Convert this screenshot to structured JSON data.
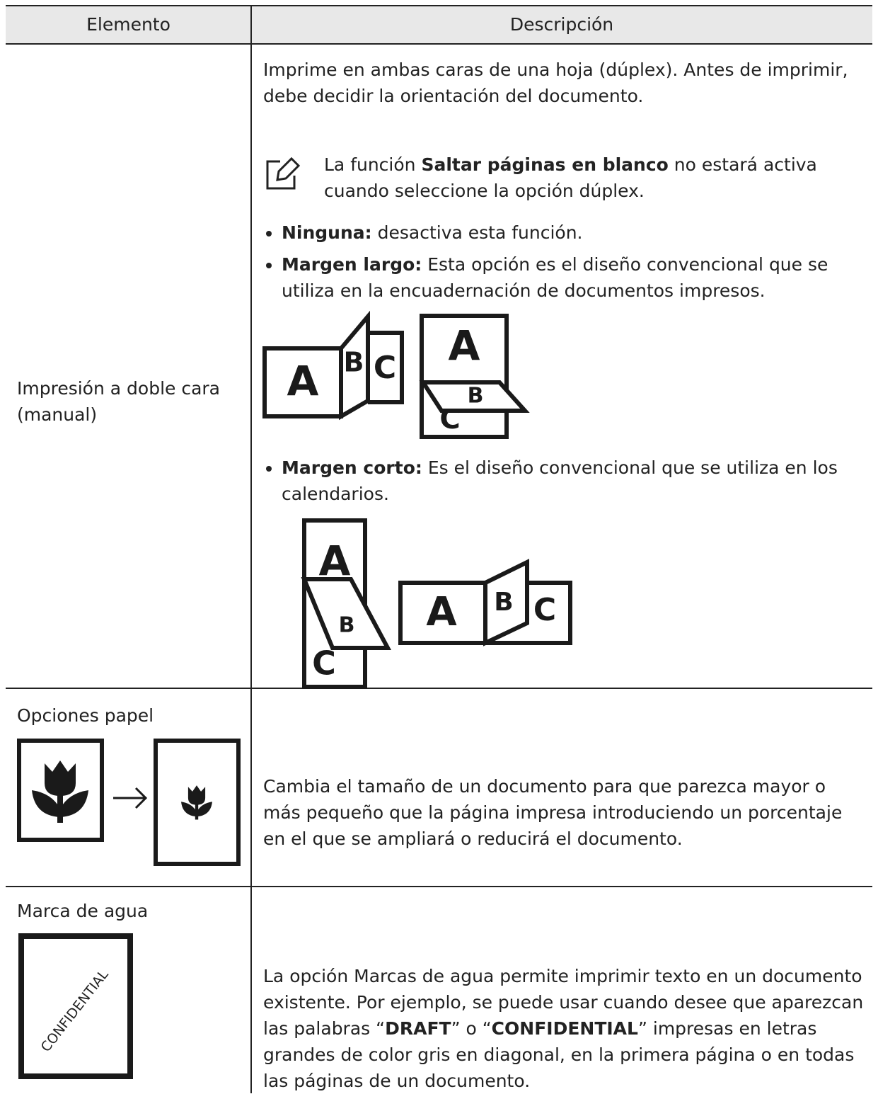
{
  "table": {
    "header": [
      "Elemento",
      "Descripción"
    ],
    "rows": [
      {
        "element": "Impresión a doble cara (manual)",
        "description": {
          "intro": "Imprime en ambas caras de una hoja (dúplex). Antes de imprimir, debe decidir la orientación del documento.",
          "note": [
            "La función ",
            "Saltar páginas en blanco",
            " no estará activa cuando seleccione la opción dúplex."
          ],
          "options": [
            {
              "label": "Ninguna:",
              "text": " desactiva esta función."
            },
            {
              "label": "Margen largo:",
              "text": " Esta opción es el diseño convencional que se utiliza en la encuadernación de documentos impresos."
            },
            {
              "label": "Margen corto:",
              "text": " Es el diseño convencional que se utiliza en los calendarios."
            }
          ]
        }
      },
      {
        "element": "Opciones papel",
        "description": "Cambia el tamaño de un documento para que parezca mayor o más pequeño que la página impresa introduciendo un porcentaje en el que se ampliará o reducirá el documento."
      },
      {
        "element": "Marca de agua",
        "description": [
          "La opción Marcas de agua permite imprimir texto en un documento existente. Por ejemplo, se puede usar cuando desee que aparezcan las palabras “",
          "DRAFT",
          "” o “",
          "CONFIDENTIAL",
          "” impresas en letras grandes de color gris en diagonal, en la primera página o en todas las páginas de un documento."
        ]
      }
    ],
    "figure_letters": [
      "A",
      "B",
      "C"
    ],
    "watermark_sample": "CONFIDENTIAL"
  }
}
